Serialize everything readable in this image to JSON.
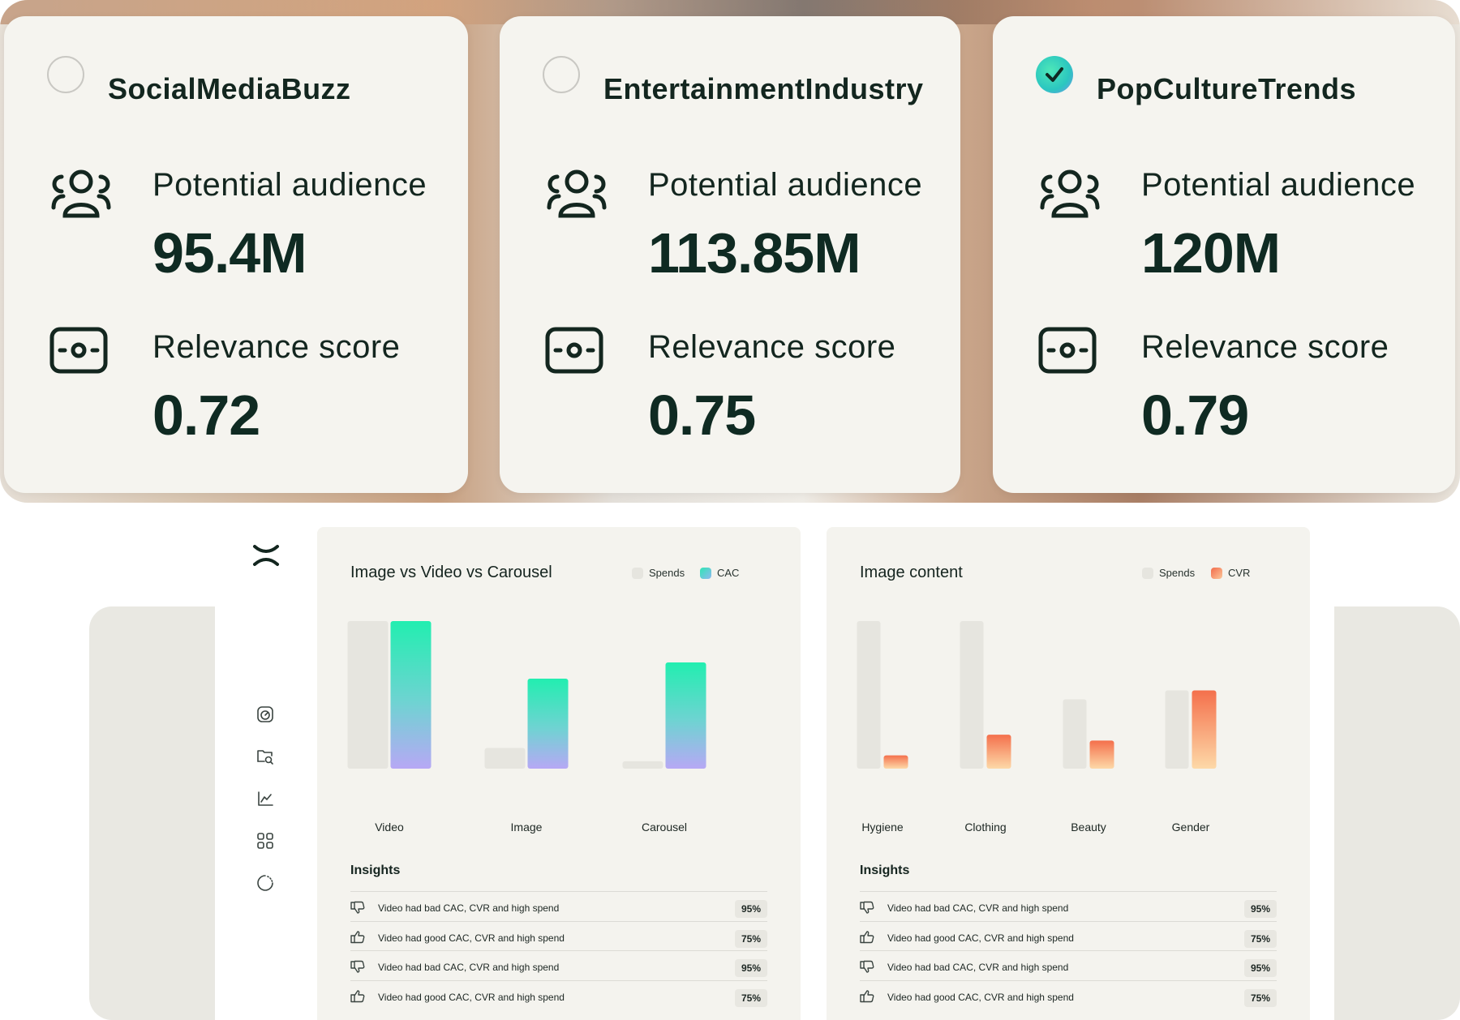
{
  "audience_cards": [
    {
      "name": "SocialMediaBuzz",
      "selected": false,
      "audience_label": "Potential audience",
      "audience_value": "95.4M",
      "relevance_label": "Relevance score",
      "relevance_value": "0.72"
    },
    {
      "name": "EntertainmentIndustry",
      "selected": false,
      "audience_label": "Potential audience",
      "audience_value": "113.85M",
      "relevance_label": "Relevance score",
      "relevance_value": "0.75"
    },
    {
      "name": "PopCultureTrends",
      "selected": true,
      "audience_label": "Potential audience",
      "audience_value": "120M",
      "relevance_label": "Relevance score",
      "relevance_value": "0.79"
    }
  ],
  "sidebar": {
    "icons": [
      "gauge-icon",
      "folder-search-icon",
      "line-chart-icon",
      "grid-icon",
      "loading-icon"
    ]
  },
  "panels": [
    {
      "title": "Image vs Video vs Carousel",
      "legend": [
        {
          "label": "Spends",
          "color": "#e6e5df"
        },
        {
          "label": "CAC",
          "color": "#5fd8c8"
        }
      ],
      "chart_data": {
        "type": "bar",
        "categories": [
          "Video",
          "Image",
          "Carousel"
        ],
        "series": [
          {
            "name": "Spends",
            "values": [
              100,
              14,
              5
            ]
          },
          {
            "name": "CAC",
            "values": [
              100,
              61,
              72
            ]
          }
        ],
        "ylim": [
          0,
          100
        ]
      },
      "insights_title": "Insights",
      "insights": [
        {
          "kind": "bad",
          "text": "Video had bad CAC, CVR and high spend",
          "pct": "95%"
        },
        {
          "kind": "good",
          "text": "Video had good CAC, CVR and high spend",
          "pct": "75%"
        },
        {
          "kind": "bad",
          "text": "Video had bad CAC, CVR and high spend",
          "pct": "95%"
        },
        {
          "kind": "good",
          "text": "Video had good CAC, CVR and high spend",
          "pct": "75%"
        }
      ]
    },
    {
      "title": "Image content",
      "legend": [
        {
          "label": "Spends",
          "color": "#e6e5df"
        },
        {
          "label": "CVR",
          "color": "#f58b5e"
        }
      ],
      "chart_data": {
        "type": "bar",
        "categories": [
          "Hygiene",
          "Clothing",
          "Beauty",
          "Gender"
        ],
        "series": [
          {
            "name": "Spends",
            "values": [
              100,
              100,
              47,
              53
            ]
          },
          {
            "name": "CVR",
            "values": [
              9,
              23,
              19,
              53
            ]
          }
        ],
        "ylim": [
          0,
          100
        ]
      },
      "insights_title": "Insights",
      "insights": [
        {
          "kind": "bad",
          "text": "Video had bad CAC, CVR and high spend",
          "pct": "95%"
        },
        {
          "kind": "good",
          "text": "Video had good CAC, CVR and high spend",
          "pct": "75%"
        },
        {
          "kind": "bad",
          "text": "Video had bad CAC, CVR and high spend",
          "pct": "95%"
        },
        {
          "kind": "good",
          "text": "Video had good CAC, CVR and high spend",
          "pct": "75%"
        }
      ]
    }
  ]
}
